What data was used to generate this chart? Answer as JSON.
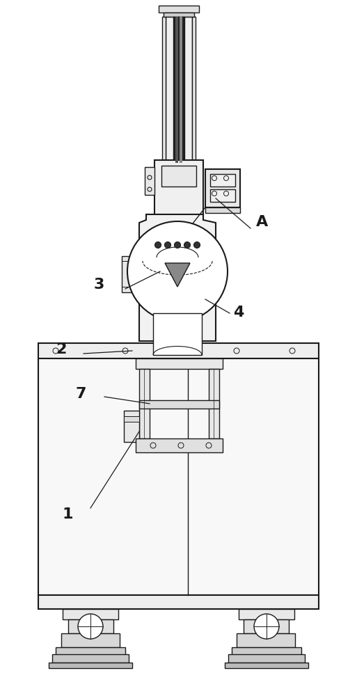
{
  "bg_color": "#ffffff",
  "line_color": "#1a1a1a",
  "figsize": [
    5.13,
    10.0
  ],
  "dpi": 100
}
